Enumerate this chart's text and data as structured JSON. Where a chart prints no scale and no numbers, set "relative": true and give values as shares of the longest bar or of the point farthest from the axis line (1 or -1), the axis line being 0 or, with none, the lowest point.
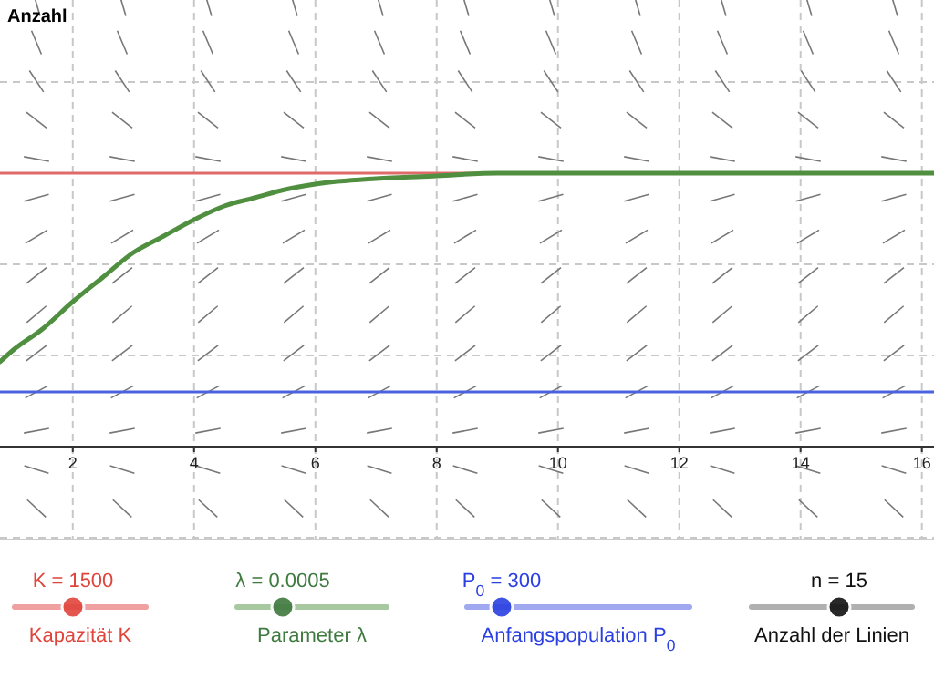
{
  "chart_data": {
    "type": "line",
    "relative": true,
    "x": [
      0.8,
      1,
      1.5,
      2,
      2.5,
      3,
      3.5,
      4,
      4.5,
      5,
      5.5,
      6,
      7,
      8,
      9,
      10,
      12,
      14,
      16.2
    ],
    "series": [
      {
        "color": "#4f8f3f",
        "values": [
          0.31,
          0.35,
          0.43,
          0.53,
          0.62,
          0.71,
          0.77,
          0.83,
          0.88,
          0.91,
          0.94,
          0.96,
          0.98,
          0.99,
          1,
          1,
          1,
          1,
          1
        ]
      }
    ],
    "xlim": [
      0.8,
      16.2
    ],
    "xticks": [
      2,
      4,
      6,
      8,
      10,
      12,
      14,
      16
    ],
    "grid": true,
    "ref_lines": [
      {
        "axis": "y",
        "value": 1,
        "color": "#e06a6a"
      },
      {
        "axis": "y",
        "value": 0.2,
        "color": "#4a62e0"
      }
    ],
    "annotations": [
      "K = 1500",
      "Kapazität K",
      "λ = 0.0005",
      "Parameter λ",
      "P$_{0}$ = 300",
      "Anfangspopulation P$_{0}$",
      "n = 15",
      "Anzahl der Linien",
      "Anzahl"
    ]
  }
}
